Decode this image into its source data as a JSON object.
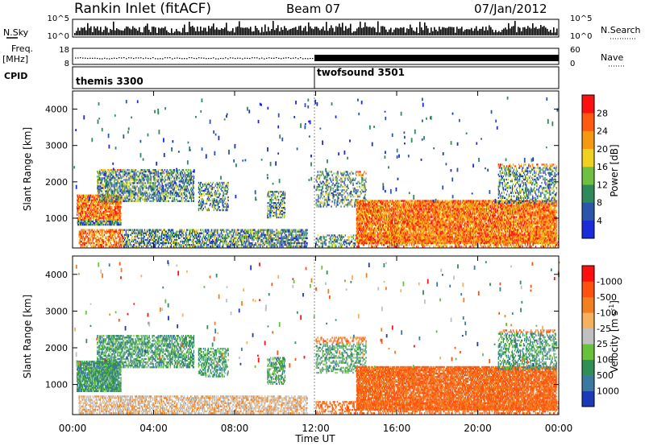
{
  "header": {
    "title": "Rankin Inlet (fitACF)",
    "beam": "Beam 07",
    "date": "07/Jan/2012"
  },
  "aux_labels": {
    "nsky": "N.Sky",
    "nsearch": "N.Search",
    "freq_line1": "Freq.",
    "freq_line2": "[MHz]",
    "nave": "Nave",
    "cpid": "CPID",
    "sky_ticks": [
      "10^5",
      "10^0"
    ],
    "freq_ticks": [
      "18",
      "8"
    ],
    "nave_ticks": [
      "60",
      "0"
    ]
  },
  "cpid_segments": [
    {
      "label": "themis 3300",
      "start_hour": 0
    },
    {
      "label": "twofsound 3501",
      "start_hour": 12
    }
  ],
  "chart_data": [
    {
      "type": "heatmap",
      "panel": "power",
      "title": "",
      "xlabel": "Time UT",
      "ylabel": "Slant Range [km]",
      "x_ticks": [
        "00:00",
        "04:00",
        "08:00",
        "12:00",
        "16:00",
        "20:00",
        "00:00"
      ],
      "xlim": [
        0,
        24
      ],
      "ylim": [
        180,
        4500
      ],
      "y_ticks": [
        1000,
        2000,
        3000,
        4000
      ],
      "colorbar": {
        "label": "Power [dB]",
        "ticks": [
          "4",
          "8",
          "12",
          "16",
          "20",
          "24",
          "28"
        ],
        "colors": [
          "#1a2bd9",
          "#2a55aa",
          "#2e8a5a",
          "#6fc040",
          "#f0d020",
          "#f59a10",
          "#ff5a10",
          "#ff1010"
        ]
      }
    },
    {
      "type": "heatmap",
      "panel": "velocity",
      "title": "",
      "xlabel": "Time UT",
      "ylabel": "Slant Range [km]",
      "x_ticks": [
        "00:00",
        "04:00",
        "08:00",
        "12:00",
        "16:00",
        "20:00",
        "00:00"
      ],
      "xlim": [
        0,
        24
      ],
      "ylim": [
        180,
        4500
      ],
      "y_ticks": [
        1000,
        2000,
        3000,
        4000
      ],
      "colorbar": {
        "label": "Velocity [m s",
        "label_sup": "-1",
        "label_end": "]",
        "ticks": [
          "1000",
          "500",
          "100",
          "25",
          "-25",
          "-100",
          "-500",
          "-1000"
        ],
        "colors": [
          "#1a3ab8",
          "#3a7aa0",
          "#2f8f55",
          "#66c23a",
          "#c0c0c0",
          "#f5b060",
          "#f08020",
          "#ff5010",
          "#ff1010"
        ]
      }
    }
  ],
  "x_axis": {
    "label": "Time UT",
    "ticks": [
      "00:00",
      "04:00",
      "08:00",
      "12:00",
      "16:00",
      "20:00",
      "00:00"
    ]
  }
}
